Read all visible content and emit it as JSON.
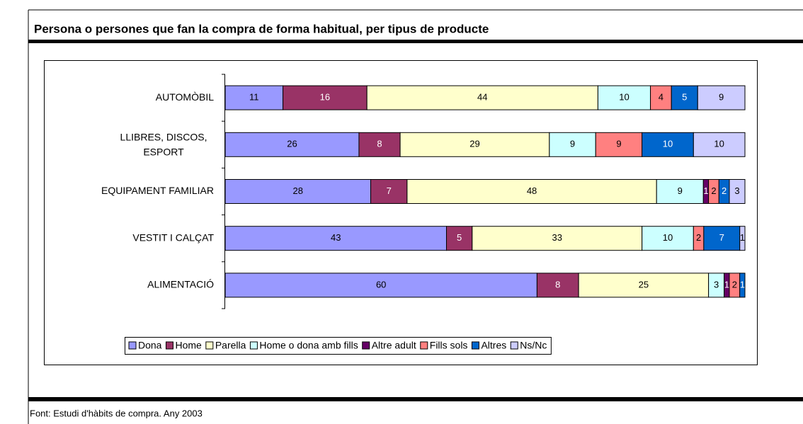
{
  "chart_data": {
    "type": "bar",
    "orientation": "horizontal",
    "stacked": "percent",
    "title": "Persona o persones que fan la compra de forma habitual, per tipus de producte",
    "source": "Font: Estudi d'hàbits de compra. Any 2003",
    "categories": [
      "AUTOMÒBIL",
      "LLIBRES, DISCOS, ESPORT",
      "EQUIPAMENT FAMILIAR",
      "VESTIT I CALÇAT",
      "ALIMENTACIÓ"
    ],
    "series": [
      {
        "name": "Dona",
        "color": "#9999ff",
        "values": [
          11,
          26,
          28,
          43,
          60
        ]
      },
      {
        "name": "Home",
        "color": "#993366",
        "values": [
          16,
          8,
          7,
          5,
          8
        ]
      },
      {
        "name": "Parella",
        "color": "#ffffcc",
        "values": [
          44,
          29,
          48,
          33,
          25
        ]
      },
      {
        "name": "Home o dona amb fills",
        "color": "#ccffff",
        "values": [
          10,
          9,
          9,
          10,
          3
        ]
      },
      {
        "name": "Altre adult",
        "color": "#660066",
        "values": [
          0,
          0,
          1,
          0,
          1
        ]
      },
      {
        "name": "Fills sols",
        "color": "#ff8080",
        "values": [
          4,
          9,
          2,
          2,
          2
        ]
      },
      {
        "name": "Altres",
        "color": "#0066cc",
        "values": [
          5,
          10,
          2,
          7,
          1
        ]
      },
      {
        "name": "Ns/Nc",
        "color": "#ccccff",
        "values": [
          9,
          10,
          3,
          1,
          0
        ]
      }
    ],
    "legend": "bottom"
  }
}
